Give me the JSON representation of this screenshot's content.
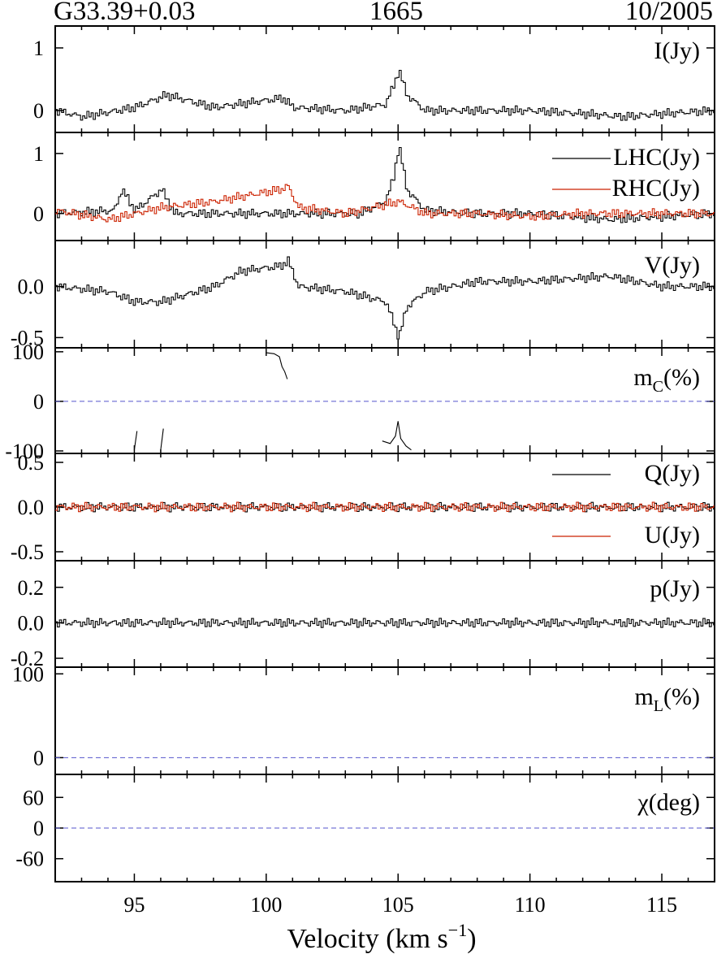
{
  "header": {
    "source": "G33.39+0.03",
    "frequency": "1665",
    "date": "10/2005"
  },
  "xaxis": {
    "label_main": "Velocity (km s",
    "label_sup": "−1",
    "label_close": ")",
    "range": [
      92,
      117
    ],
    "ticks": [
      "95",
      "100",
      "105",
      "110",
      "115"
    ]
  },
  "colors": {
    "black": "#000000",
    "red": "#cc2200",
    "dashed": "#5555cc"
  },
  "chart_data": [
    {
      "type": "line",
      "panel": "I",
      "label": "I(Jy)",
      "ylim": [
        -0.35,
        1.35
      ],
      "yticks": [
        "0",
        "1"
      ],
      "series": [
        {
          "color": "#000000",
          "style": "step",
          "x": [
            92.0,
            93.0,
            95.0,
            96.2,
            98.0,
            100.6,
            101.0,
            103.0,
            104.5,
            104.8,
            105.0,
            105.3,
            106.0,
            108.0,
            110.0,
            112.0,
            113.5,
            115.0,
            117.0
          ],
          "y": [
            0.0,
            -0.1,
            0.05,
            0.25,
            0.05,
            0.2,
            0.05,
            0.0,
            0.1,
            0.4,
            0.65,
            0.25,
            0.0,
            0.0,
            0.0,
            -0.05,
            -0.1,
            -0.05,
            0.0
          ]
        }
      ]
    },
    {
      "type": "line",
      "panel": "LHC_RHC",
      "label": "",
      "ylim": [
        -0.45,
        1.35
      ],
      "yticks": [
        "0",
        "1"
      ],
      "series": [
        {
          "name": "LHC(Jy)",
          "color": "#000000",
          "style": "step",
          "x": [
            92.0,
            94.2,
            94.5,
            95.0,
            96.0,
            96.5,
            98.0,
            101.0,
            103.5,
            104.5,
            104.8,
            105.0,
            105.3,
            106.0,
            108.0,
            110.0,
            113.0,
            115.0,
            117.0
          ],
          "y": [
            0.0,
            0.05,
            0.4,
            0.05,
            0.4,
            0.0,
            0.0,
            0.0,
            0.0,
            0.2,
            0.6,
            1.15,
            0.4,
            0.05,
            0.0,
            0.0,
            -0.1,
            -0.05,
            0.0
          ]
        },
        {
          "name": "RHC(Jy)",
          "color": "#cc2200",
          "style": "step",
          "x": [
            92.0,
            94.0,
            96.0,
            98.0,
            100.5,
            100.8,
            101.2,
            103.0,
            105.0,
            106.0,
            108.0,
            110.0,
            112.0,
            114.0,
            117.0
          ],
          "y": [
            0.05,
            -0.1,
            0.1,
            0.2,
            0.4,
            0.45,
            0.1,
            0.0,
            0.2,
            0.0,
            0.0,
            -0.05,
            0.0,
            0.0,
            0.0
          ]
        }
      ]
    },
    {
      "type": "line",
      "panel": "V",
      "label": "V(Jy)",
      "ylim": [
        -0.6,
        0.45
      ],
      "yticks": [
        "0.0",
        "-0.5"
      ],
      "series": [
        {
          "color": "#000000",
          "style": "step",
          "x": [
            92.0,
            94.0,
            95.0,
            96.0,
            98.0,
            99.0,
            100.5,
            100.8,
            101.2,
            103.0,
            104.5,
            104.8,
            105.0,
            105.3,
            106.0,
            108.0,
            110.0,
            113.0,
            115.0,
            117.0
          ],
          "y": [
            0.0,
            -0.05,
            -0.15,
            -0.15,
            0.0,
            0.15,
            0.2,
            0.25,
            0.0,
            -0.05,
            -0.15,
            -0.35,
            -0.5,
            -0.2,
            -0.05,
            0.05,
            0.05,
            0.1,
            0.0,
            0.0
          ]
        }
      ]
    },
    {
      "type": "line",
      "panel": "mc",
      "label_main": "m",
      "label_sub": "C",
      "label_tail": "(%)",
      "ylim": [
        -105,
        108
      ],
      "yticks": [
        "100",
        "0",
        "-100"
      ],
      "series": [
        {
          "color": "#000000",
          "style": "line",
          "x": [
            100.0,
            100.3,
            100.5,
            100.6,
            100.7,
            100.8
          ],
          "y": [
            98,
            96,
            90,
            70,
            60,
            45
          ]
        },
        {
          "color": "#000000",
          "style": "line",
          "x": [
            95.0,
            95.1
          ],
          "y": [
            -98,
            -60
          ]
        },
        {
          "color": "#000000",
          "style": "line",
          "x": [
            96.0,
            96.1
          ],
          "y": [
            -98,
            -55
          ]
        },
        {
          "color": "#000000",
          "style": "line",
          "x": [
            104.4,
            104.7,
            104.9,
            105.0,
            105.1,
            105.3,
            105.5
          ],
          "y": [
            -80,
            -85,
            -70,
            -40,
            -75,
            -90,
            -98
          ]
        }
      ],
      "zero_line": 0
    },
    {
      "type": "line",
      "panel": "QU",
      "label": "",
      "ylim": [
        -0.6,
        0.6
      ],
      "yticks": [
        "0.5",
        "0.0",
        "-0.5"
      ],
      "series": [
        {
          "name": "Q(Jy)",
          "color": "#000000",
          "style": "step",
          "x": [
            92.0,
            117.0
          ],
          "y": [
            0.0,
            0.0
          ]
        },
        {
          "name": "U(Jy)",
          "color": "#cc2200",
          "style": "step",
          "x": [
            92.0,
            117.0
          ],
          "y": [
            0.0,
            0.0
          ]
        }
      ]
    },
    {
      "type": "line",
      "panel": "p",
      "label": "p(Jy)",
      "ylim": [
        -0.25,
        0.35
      ],
      "yticks": [
        "0.2",
        "0.0",
        "-0.2"
      ],
      "series": [
        {
          "color": "#000000",
          "style": "step",
          "x": [
            92.0,
            117.0
          ],
          "y": [
            0.0,
            0.0
          ]
        }
      ]
    },
    {
      "type": "line",
      "panel": "mL",
      "label_main": "m",
      "label_sub": "L",
      "label_tail": "(%)",
      "ylim": [
        -20,
        108
      ],
      "yticks": [
        "100",
        "0"
      ],
      "series": [],
      "zero_line": 0
    },
    {
      "type": "line",
      "panel": "chi",
      "label": "χ(deg)",
      "ylim": [
        -105,
        105
      ],
      "yticks": [
        "60",
        "0",
        "-60"
      ],
      "series": [],
      "zero_line": 0
    }
  ]
}
